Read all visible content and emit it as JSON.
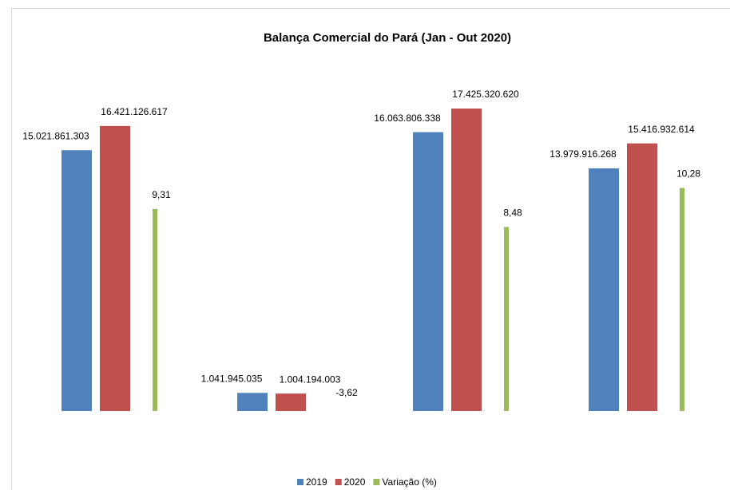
{
  "chart_data": {
    "type": "bar",
    "title": "Balança Comercial do Pará (Jan - Out 2020)",
    "categories": [
      null,
      null,
      null,
      null
    ],
    "series": [
      {
        "name": "2019",
        "color": "#4f81bd",
        "values": [
          15021861303,
          1041945035,
          16063806338,
          13979916268
        ],
        "value_labels": [
          "15.021.861.303",
          "1.041.945.035",
          "16.063.806.338",
          "13.979.916.268"
        ]
      },
      {
        "name": "2020",
        "color": "#c0504d",
        "values": [
          16421126617,
          1004194003,
          17425320620,
          15416932614
        ],
        "value_labels": [
          "16.421.126.617",
          "1.004.194.003",
          "17.425.320.620",
          "15.416.932.614"
        ]
      },
      {
        "name": "Variação (%)",
        "color": "#9bbb59",
        "axis": "y2",
        "values": [
          9.31,
          -3.62,
          8.48,
          10.28
        ],
        "value_labels": [
          "9,31",
          "-3,62",
          "8,48",
          "10,28"
        ]
      }
    ],
    "ylim": [
      0,
      20000000000
    ],
    "y2lim": [
      0,
      16
    ],
    "grid": false,
    "legend": "bottom"
  }
}
